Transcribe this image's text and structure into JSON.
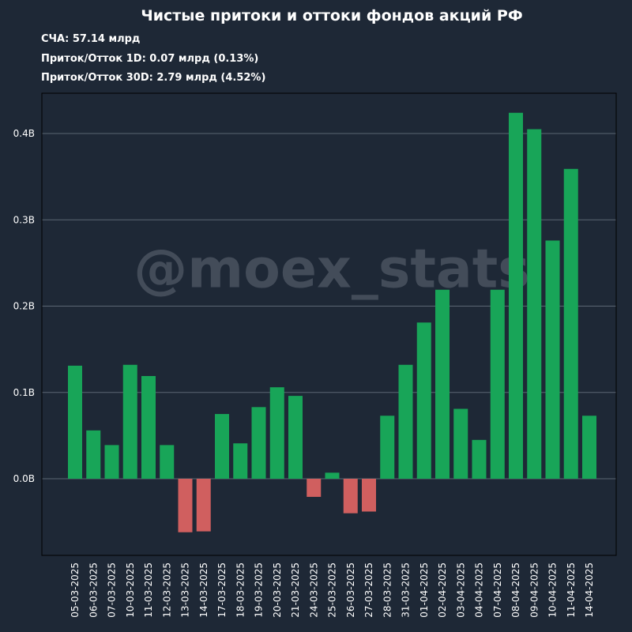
{
  "colors": {
    "background": "#1e2836",
    "grid": "#5b6673",
    "positive": "#18a558",
    "negative": "#d05f5f",
    "watermark": "#4a5360",
    "text": "#ffffff"
  },
  "header": {
    "info": [
      "СЧА: 57.14 млрд",
      "Приток/Отток 1D: 0.07 млрд (0.13%)",
      "Приток/Отток 30D: 2.79 млрд (4.52%)"
    ]
  },
  "chart_data": {
    "type": "bar",
    "title": "Чистые притоки и оттоки фондов акций РФ",
    "xlabel": "",
    "ylabel": "",
    "watermark": "@moex_stats",
    "ylim": [
      -0.09,
      0.45
    ],
    "yticks": [
      {
        "value": 0.0,
        "label": "0.0B"
      },
      {
        "value": 0.1,
        "label": "0.1B"
      },
      {
        "value": 0.2,
        "label": "0.2B"
      },
      {
        "value": 0.3,
        "label": "0.3B"
      },
      {
        "value": 0.4,
        "label": "0.4B"
      }
    ],
    "grid": true,
    "categories": [
      "05-03-2025",
      "06-03-2025",
      "07-03-2025",
      "10-03-2025",
      "11-03-2025",
      "12-03-2025",
      "13-03-2025",
      "14-03-2025",
      "17-03-2025",
      "18-03-2025",
      "19-03-2025",
      "20-03-2025",
      "21-03-2025",
      "24-03-2025",
      "25-03-2025",
      "26-03-2025",
      "27-03-2025",
      "28-03-2025",
      "31-03-2025",
      "01-04-2025",
      "02-04-2025",
      "03-04-2025",
      "04-04-2025",
      "07-04-2025",
      "08-04-2025",
      "09-04-2025",
      "10-04-2025",
      "11-04-2025",
      "14-04-2025"
    ],
    "values": [
      0.131,
      0.056,
      0.039,
      0.132,
      0.119,
      0.039,
      -0.062,
      -0.061,
      0.075,
      0.041,
      0.083,
      0.106,
      0.096,
      -0.021,
      0.007,
      -0.04,
      -0.038,
      0.073,
      0.132,
      0.181,
      0.219,
      0.081,
      0.045,
      0.219,
      0.424,
      0.405,
      0.276,
      0.359,
      0.073
    ]
  }
}
